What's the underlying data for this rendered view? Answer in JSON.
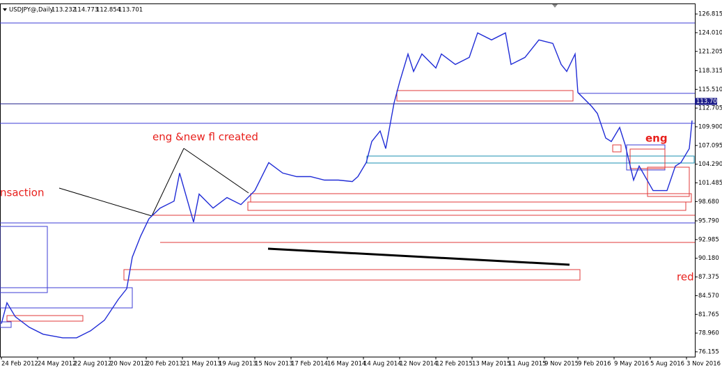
{
  "chart_data": {
    "type": "line",
    "header": {
      "symbol": "USDJPY@,Daily",
      "open": 113.232,
      "high": 114.773,
      "low": 112.854,
      "close": 113.701
    },
    "annotations": [
      "eng &new fl created",
      "nsaction",
      "eng",
      "red"
    ],
    "x": [
      0,
      2,
      5,
      10,
      15,
      22,
      27,
      32,
      37,
      42,
      45,
      47,
      50,
      53,
      57,
      62,
      64,
      69,
      71,
      76,
      81,
      86,
      91,
      96,
      101,
      106,
      111,
      116,
      121,
      126,
      128,
      131,
      133,
      136,
      138,
      141,
      143,
      146,
      148,
      151,
      156,
      158,
      163,
      168,
      171,
      176,
      181,
      183,
      188,
      193,
      198,
      201,
      203,
      206,
      207,
      212,
      214,
      217,
      219,
      222,
      224,
      227,
      229,
      234,
      239,
      242,
      244,
      247,
      248
    ],
    "series": [
      {
        "color": "#1f2bd6",
        "values": [
          80.36,
          83.51,
          81.41,
          79.83,
          78.78,
          78.25,
          78.25,
          79.3,
          80.88,
          84.03,
          85.61,
          90.34,
          93.5,
          96.12,
          97.7,
          98.75,
          102.96,
          95.6,
          99.8,
          97.7,
          99.28,
          98.23,
          100.33,
          104.53,
          102.96,
          102.43,
          102.43,
          101.9,
          101.9,
          101.69,
          102.43,
          104.53,
          107.69,
          109.26,
          106.63,
          113.47,
          116.62,
          120.82,
          118.19,
          120.82,
          118.72,
          120.82,
          119.25,
          120.3,
          123.98,
          122.93,
          123.98,
          119.25,
          120.3,
          122.93,
          122.4,
          119.25,
          118.19,
          120.82,
          115.04,
          112.94,
          111.89,
          108.21,
          107.69,
          109.79,
          107.16,
          101.9,
          104.01,
          100.33,
          100.33,
          104.01,
          104.53,
          106.63,
          110.84
        ]
      }
    ],
    "xlim": [
      0,
      249
    ],
    "ylim": [
      75.42,
      128.39
    ],
    "xticks": [
      {
        "value": 0,
        "label": "24 Feb 2012"
      },
      {
        "value": 13,
        "label": "24 May 2012"
      },
      {
        "value": 26,
        "label": "22 Aug 2012"
      },
      {
        "value": 39,
        "label": "20 Nov 2012"
      },
      {
        "value": 52,
        "label": "20 Feb 2013"
      },
      {
        "value": 65,
        "label": "21 May 2013"
      },
      {
        "value": 78,
        "label": "19 Aug 2013"
      },
      {
        "value": 91,
        "label": "15 Nov 2013"
      },
      {
        "value": 104,
        "label": "17 Feb 2014"
      },
      {
        "value": 117,
        "label": "16 May 2014"
      },
      {
        "value": 130,
        "label": "14 Aug 2014"
      },
      {
        "value": 143,
        "label": "12 Nov 2014"
      },
      {
        "value": 156,
        "label": "12 Feb 2015"
      },
      {
        "value": 169,
        "label": "13 May 2015"
      },
      {
        "value": 182,
        "label": "11 Aug 2015"
      },
      {
        "value": 195,
        "label": "9 Nov 2015"
      },
      {
        "value": 207,
        "label": "9 Feb 2016"
      },
      {
        "value": 220,
        "label": "9 May 2016"
      },
      {
        "value": 233,
        "label": "5 Aug 2016"
      },
      {
        "value": 246,
        "label": "3 Nov 2016"
      }
    ],
    "yticks": [
      126.815,
      {
        "value": 124.01,
        "label": "124.010"
      },
      121.205,
      118.315,
      {
        "value": 115.51,
        "label": "115.510"
      },
      112.705,
      {
        "value": 109.9,
        "label": "109.900"
      },
      107.095,
      {
        "value": 104.29,
        "label": "104.290"
      },
      101.485,
      {
        "value": 98.68,
        "label": "98.680"
      },
      {
        "value": 95.79,
        "label": "95.790"
      },
      92.985,
      {
        "value": 90.18,
        "label": "90.180"
      },
      87.375,
      {
        "value": 84.57,
        "label": "84.570"
      },
      81.765,
      {
        "value": 78.96,
        "label": "78.960"
      },
      76.155
    ],
    "grid": false
  }
}
